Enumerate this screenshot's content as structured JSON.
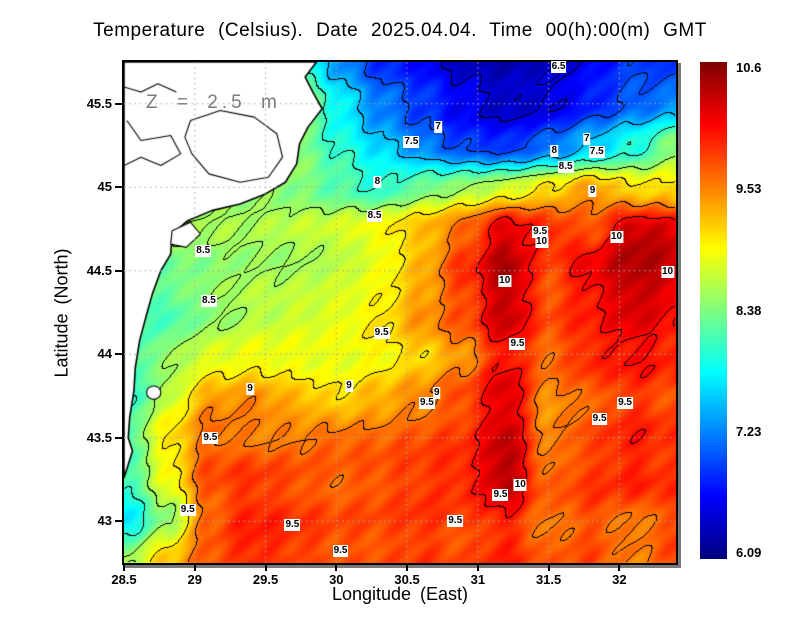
{
  "title": "Temperature (Celsius). Date 2025.04.04. Time 00(h):00(m) GMT",
  "annotation": "Z = 2.5 m",
  "axes": {
    "x": {
      "label": "Longitude (East)",
      "ticks": [
        "28.5",
        "29",
        "29.5",
        "30",
        "30.5",
        "31",
        "31.5",
        "32"
      ],
      "tick_values": [
        28.5,
        29,
        29.5,
        30,
        30.5,
        31,
        31.5,
        32
      ]
    },
    "y": {
      "label": "Latitude (North)",
      "ticks": [
        "45.5",
        "45",
        "44.5",
        "44",
        "43.5",
        "43"
      ],
      "tick_values": [
        45.5,
        45,
        44.5,
        44,
        43.5,
        43
      ]
    }
  },
  "colorbar": {
    "ticks": [
      "10.6",
      "9.53",
      "8.38",
      "7.23",
      "6.09"
    ],
    "min": 6.09,
    "max": 10.6,
    "colormap": "jet"
  },
  "chart_data": {
    "type": "heatmap",
    "title": "Temperature (Celsius). Date 2025.04.04. Time 00(h):00(m) GMT",
    "xlabel": "Longitude (East)",
    "ylabel": "Latitude (North)",
    "units": "Celsius",
    "depth_annotation": "Z = 2.5 m",
    "xlim": [
      28.5,
      32.4
    ],
    "ylim": [
      42.75,
      45.75
    ],
    "grid_on": true,
    "contour_levels": [
      6.5,
      7,
      7.5,
      8,
      8.5,
      9,
      9.5,
      10
    ],
    "color_range": [
      6.09,
      10.6
    ],
    "grid_lons": [
      28.5,
      28.8,
      29.1,
      29.4,
      29.7,
      30.0,
      30.3,
      30.6,
      30.9,
      31.2,
      31.5,
      31.8,
      32.1,
      32.4
    ],
    "grid_lats": [
      45.75,
      45.5,
      45.25,
      45.0,
      44.75,
      44.5,
      44.25,
      44.0,
      43.75,
      43.5,
      43.25,
      43.0,
      42.75
    ],
    "temps": [
      [
        8.3,
        8.3,
        8.3,
        8.2,
        8.2,
        7.4,
        6.9,
        6.7,
        6.4,
        6.3,
        6.4,
        6.6,
        6.9,
        6.8
      ],
      [
        8.3,
        8.3,
        8.3,
        8.4,
        8.8,
        7.8,
        7.2,
        6.9,
        6.6,
        6.4,
        6.5,
        6.8,
        7.1,
        7.3
      ],
      [
        8.4,
        8.4,
        8.4,
        8.5,
        8.4,
        8.0,
        7.6,
        7.2,
        6.9,
        6.8,
        7.1,
        7.5,
        7.9,
        8.4
      ],
      [
        8.5,
        8.5,
        8.5,
        8.5,
        8.4,
        8.2,
        8.0,
        8.3,
        8.5,
        8.7,
        9.0,
        9.3,
        9.0,
        9.0
      ],
      [
        8.5,
        8.5,
        8.5,
        8.5,
        8.6,
        8.7,
        8.9,
        9.2,
        9.6,
        10.2,
        9.9,
        9.7,
        10.3,
        10.2
      ],
      [
        8.4,
        8.3,
        8.4,
        8.5,
        8.5,
        8.6,
        8.8,
        9.2,
        9.8,
        10.4,
        9.7,
        10.1,
        10.4,
        10.3
      ],
      [
        8.2,
        8.1,
        8.4,
        8.6,
        8.7,
        8.8,
        9.0,
        9.4,
        9.7,
        10.3,
        9.7,
        9.9,
        10.2,
        10.0
      ],
      [
        8.0,
        8.4,
        8.7,
        8.8,
        8.8,
        8.8,
        8.9,
        9.1,
        9.4,
        10.0,
        9.6,
        9.9,
        10.0,
        9.9
      ],
      [
        7.9,
        8.6,
        9.3,
        9.4,
        9.2,
        9.0,
        9.2,
        9.4,
        9.7,
        10.2,
        9.4,
        9.6,
        9.8,
        9.7
      ],
      [
        8.1,
        9.0,
        9.6,
        9.5,
        9.5,
        9.6,
        9.6,
        9.7,
        9.8,
        10.3,
        9.4,
        9.7,
        9.9,
        9.8
      ],
      [
        8.0,
        8.8,
        9.7,
        9.8,
        9.7,
        9.6,
        9.7,
        9.8,
        9.9,
        10.4,
        9.6,
        9.8,
        9.9,
        9.8
      ],
      [
        7.7,
        8.4,
        9.6,
        9.9,
        9.8,
        9.7,
        9.7,
        9.8,
        9.7,
        9.9,
        9.5,
        9.7,
        9.5,
        9.7
      ],
      [
        8.5,
        9.2,
        9.7,
        9.9,
        9.8,
        9.7,
        9.7,
        9.8,
        9.7,
        9.9,
        9.6,
        9.7,
        9.4,
        9.7
      ]
    ],
    "contour_labels": [
      {
        "v": "6.5",
        "lon": 31.57,
        "lat": 45.72
      },
      {
        "v": "7",
        "lon": 30.72,
        "lat": 45.36
      },
      {
        "v": "7.5",
        "lon": 30.53,
        "lat": 45.27
      },
      {
        "v": "8",
        "lon": 31.54,
        "lat": 45.22
      },
      {
        "v": "7",
        "lon": 31.77,
        "lat": 45.29
      },
      {
        "v": "7.5",
        "lon": 31.84,
        "lat": 45.21
      },
      {
        "v": "8.5",
        "lon": 31.62,
        "lat": 45.12
      },
      {
        "v": "9",
        "lon": 31.81,
        "lat": 44.98
      },
      {
        "v": "8",
        "lon": 30.29,
        "lat": 45.03
      },
      {
        "v": "8.5",
        "lon": 30.27,
        "lat": 44.83
      },
      {
        "v": "8.5",
        "lon": 29.06,
        "lat": 44.62
      },
      {
        "v": "8.5",
        "lon": 29.1,
        "lat": 44.32
      },
      {
        "v": "9.5",
        "lon": 31.44,
        "lat": 44.73
      },
      {
        "v": "10",
        "lon": 31.45,
        "lat": 44.67
      },
      {
        "v": "10",
        "lon": 31.98,
        "lat": 44.7
      },
      {
        "v": "10",
        "lon": 31.19,
        "lat": 44.44
      },
      {
        "v": "10",
        "lon": 32.34,
        "lat": 44.49
      },
      {
        "v": "9.5",
        "lon": 31.28,
        "lat": 44.06
      },
      {
        "v": "9.5",
        "lon": 30.32,
        "lat": 44.13
      },
      {
        "v": "9",
        "lon": 29.39,
        "lat": 43.79
      },
      {
        "v": "9",
        "lon": 30.09,
        "lat": 43.81
      },
      {
        "v": "9",
        "lon": 30.71,
        "lat": 43.77
      },
      {
        "v": "9.5",
        "lon": 30.64,
        "lat": 43.71
      },
      {
        "v": "9.5",
        "lon": 29.11,
        "lat": 43.5
      },
      {
        "v": "9.5",
        "lon": 31.86,
        "lat": 43.61
      },
      {
        "v": "9.5",
        "lon": 32.04,
        "lat": 43.71
      },
      {
        "v": "9.5",
        "lon": 28.95,
        "lat": 43.07
      },
      {
        "v": "9.5",
        "lon": 29.69,
        "lat": 42.98
      },
      {
        "v": "10",
        "lon": 31.3,
        "lat": 43.22
      },
      {
        "v": "9.5",
        "lon": 31.16,
        "lat": 43.16
      },
      {
        "v": "9.5",
        "lon": 30.84,
        "lat": 43.0
      },
      {
        "v": "9.5",
        "lon": 30.03,
        "lat": 42.82
      }
    ],
    "land_polygon": [
      [
        28.5,
        45.75
      ],
      [
        29.86,
        45.75
      ],
      [
        29.78,
        45.66
      ],
      [
        29.84,
        45.56
      ],
      [
        29.9,
        45.47
      ],
      [
        29.8,
        45.36
      ],
      [
        29.74,
        45.26
      ],
      [
        29.72,
        45.14
      ],
      [
        29.64,
        45.03
      ],
      [
        29.5,
        44.96
      ],
      [
        29.32,
        44.9
      ],
      [
        29.12,
        44.86
      ],
      [
        28.95,
        44.8
      ],
      [
        28.84,
        44.72
      ],
      [
        28.83,
        44.6
      ],
      [
        28.76,
        44.5
      ],
      [
        28.7,
        44.36
      ],
      [
        28.66,
        44.24
      ],
      [
        28.61,
        44.08
      ],
      [
        28.58,
        43.92
      ],
      [
        28.57,
        43.78
      ],
      [
        28.54,
        43.62
      ],
      [
        28.53,
        43.5
      ],
      [
        28.56,
        43.42
      ],
      [
        28.53,
        43.34
      ],
      [
        28.5,
        43.26
      ]
    ],
    "lagoons": [
      [
        [
          28.97,
          45.4
        ],
        [
          29.18,
          45.46
        ],
        [
          29.42,
          45.42
        ],
        [
          29.58,
          45.32
        ],
        [
          29.62,
          45.18
        ],
        [
          29.52,
          45.06
        ],
        [
          29.32,
          45.03
        ],
        [
          29.1,
          45.08
        ],
        [
          28.98,
          45.2
        ],
        [
          28.93,
          45.3
        ]
      ],
      [
        [
          28.84,
          44.74
        ],
        [
          28.97,
          44.79
        ],
        [
          29.04,
          44.72
        ],
        [
          28.94,
          44.64
        ],
        [
          28.83,
          44.66
        ]
      ]
    ],
    "rivers": [
      [
        [
          28.5,
          45.13
        ],
        [
          28.62,
          45.18
        ],
        [
          28.76,
          45.13
        ],
        [
          28.9,
          45.2
        ],
        [
          28.83,
          45.31
        ],
        [
          28.62,
          45.28
        ],
        [
          28.52,
          45.4
        ]
      ],
      [
        [
          28.5,
          45.6
        ],
        [
          28.62,
          45.57
        ],
        [
          28.74,
          45.62
        ],
        [
          28.87,
          45.57
        ]
      ]
    ],
    "coastal_lake": {
      "lon": 28.71,
      "lat": 43.77,
      "rlon": 0.05,
      "rlat": 0.04
    }
  }
}
